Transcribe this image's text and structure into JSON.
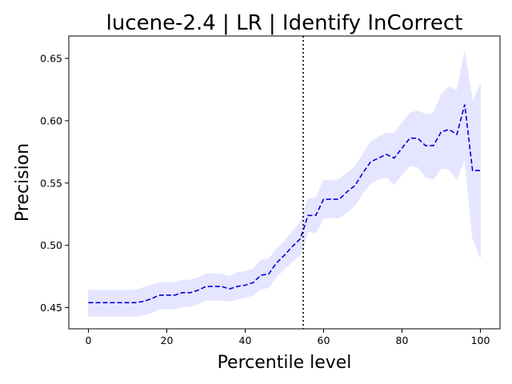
{
  "chart_data": {
    "type": "line",
    "title": "lucene-2.4 | LR | Identify InCorrect",
    "xlabel": "Percentile level",
    "ylabel": "Precision",
    "xlim": [
      -5,
      105
    ],
    "ylim": [
      0.433,
      0.668
    ],
    "xticks": [
      0,
      20,
      40,
      60,
      80,
      100
    ],
    "yticks": [
      0.45,
      0.5,
      0.55,
      0.6,
      0.65
    ],
    "ytick_labels": [
      "0.45",
      "0.50",
      "0.55",
      "0.60",
      "0.65"
    ],
    "grid": false,
    "vline": {
      "x": 54.8,
      "style": "dotted",
      "color": "#000000"
    },
    "series": [
      {
        "style": "dashed",
        "color": "#0000dd",
        "band_color": "#e5e5ff",
        "x": [
          0,
          2,
          4,
          6,
          8,
          10,
          12,
          14,
          16,
          18,
          20,
          22,
          24,
          26,
          28,
          30,
          32,
          34,
          36,
          38,
          40,
          42,
          44,
          46,
          48,
          50,
          52,
          54,
          55,
          56,
          58,
          60,
          62,
          64,
          66,
          68,
          70,
          72,
          74,
          76,
          78,
          80,
          82,
          84,
          86,
          88,
          90,
          92,
          94,
          96,
          98,
          100
        ],
        "y": [
          0.454,
          0.454,
          0.454,
          0.454,
          0.454,
          0.454,
          0.454,
          0.455,
          0.457,
          0.46,
          0.46,
          0.46,
          0.462,
          0.462,
          0.464,
          0.467,
          0.467,
          0.467,
          0.465,
          0.467,
          0.468,
          0.47,
          0.476,
          0.477,
          0.486,
          0.492,
          0.499,
          0.505,
          0.514,
          0.524,
          0.524,
          0.537,
          0.537,
          0.537,
          0.543,
          0.548,
          0.558,
          0.567,
          0.57,
          0.573,
          0.57,
          0.578,
          0.586,
          0.586,
          0.58,
          0.58,
          0.591,
          0.593,
          0.589,
          0.613,
          0.56,
          0.56
        ],
        "upper": [
          0.464,
          0.464,
          0.464,
          0.464,
          0.464,
          0.464,
          0.464,
          0.466,
          0.468,
          0.47,
          0.47,
          0.47,
          0.472,
          0.472,
          0.474,
          0.477,
          0.477,
          0.477,
          0.475,
          0.478,
          0.479,
          0.481,
          0.488,
          0.489,
          0.497,
          0.503,
          0.511,
          0.518,
          0.527,
          0.537,
          0.538,
          0.552,
          0.552,
          0.553,
          0.558,
          0.563,
          0.573,
          0.583,
          0.587,
          0.59,
          0.59,
          0.598,
          0.606,
          0.608,
          0.605,
          0.606,
          0.621,
          0.627,
          0.624,
          0.655,
          0.615,
          0.629
        ],
        "lower": [
          0.443,
          0.443,
          0.443,
          0.443,
          0.443,
          0.443,
          0.443,
          0.444,
          0.446,
          0.449,
          0.449,
          0.449,
          0.451,
          0.451,
          0.453,
          0.456,
          0.456,
          0.456,
          0.455,
          0.457,
          0.458,
          0.46,
          0.465,
          0.466,
          0.475,
          0.481,
          0.487,
          0.492,
          0.5,
          0.511,
          0.51,
          0.522,
          0.522,
          0.522,
          0.527,
          0.532,
          0.542,
          0.55,
          0.553,
          0.555,
          0.549,
          0.557,
          0.564,
          0.563,
          0.555,
          0.553,
          0.562,
          0.561,
          0.553,
          0.57,
          0.506,
          0.49
        ]
      }
    ]
  }
}
